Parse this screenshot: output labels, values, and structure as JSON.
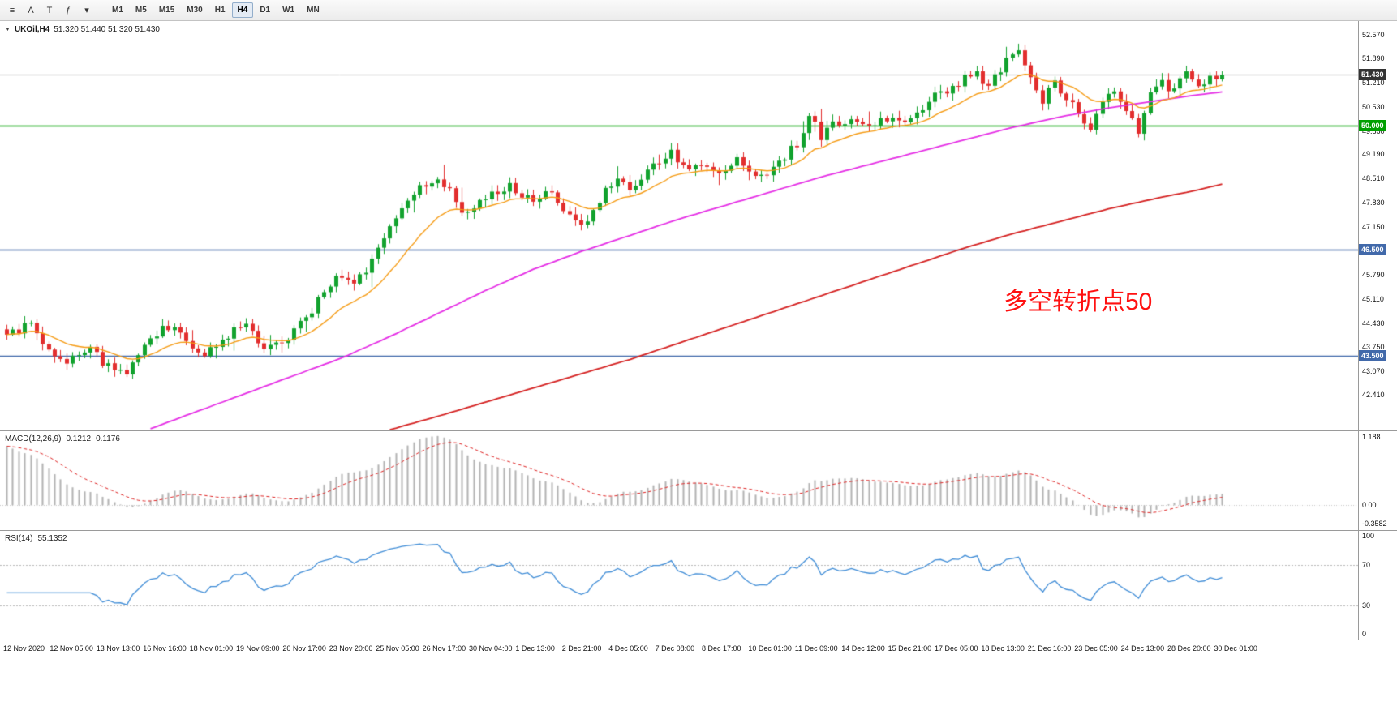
{
  "toolbar": {
    "tools": [
      {
        "id": "chart-cursor",
        "glyph": "≡"
      },
      {
        "id": "text-label",
        "glyph": "A"
      },
      {
        "id": "text-frame",
        "glyph": "T"
      },
      {
        "id": "objects",
        "glyph": "ƒ"
      },
      {
        "id": "objects-dropdown",
        "glyph": "▾"
      }
    ],
    "timeframes": [
      {
        "label": "M1",
        "active": false
      },
      {
        "label": "M5",
        "active": false
      },
      {
        "label": "M15",
        "active": false
      },
      {
        "label": "M30",
        "active": false
      },
      {
        "label": "H1",
        "active": false
      },
      {
        "label": "H4",
        "active": true
      },
      {
        "label": "D1",
        "active": false
      },
      {
        "label": "W1",
        "active": false
      },
      {
        "label": "MN",
        "active": false
      }
    ]
  },
  "chart": {
    "collapse_icon": "▼",
    "title_symbol": "UKOil,H4",
    "title_ohlc": "51.320 51.440 51.320 51.430",
    "annotation": {
      "text": "多空转折点50",
      "color": "#ff1111"
    },
    "price_axis": {
      "current_price": "51.430",
      "current_price_value": 51.43,
      "current_badge_color": "#333333",
      "ticks": [
        {
          "label": "52.570",
          "price": 52.57
        },
        {
          "label": "51.890",
          "price": 51.89
        },
        {
          "label": "51.210",
          "price": 51.21
        },
        {
          "label": "50.530",
          "price": 50.53
        },
        {
          "label": "49.850",
          "price": 49.85
        },
        {
          "label": "49.190",
          "price": 49.19
        },
        {
          "label": "48.510",
          "price": 48.51
        },
        {
          "label": "47.830",
          "price": 47.83
        },
        {
          "label": "47.150",
          "price": 47.15
        },
        {
          "label": "45.790",
          "price": 45.79
        },
        {
          "label": "45.110",
          "price": 45.11
        },
        {
          "label": "44.430",
          "price": 44.43
        },
        {
          "label": "43.750",
          "price": 43.75
        },
        {
          "label": "43.070",
          "price": 43.07
        },
        {
          "label": "42.410",
          "price": 42.41
        }
      ],
      "levels": [
        {
          "value": "50.000",
          "price": 50.0,
          "color": "#00a000"
        },
        {
          "value": "46.500",
          "price": 46.5,
          "color": "#4169aa"
        },
        {
          "value": "43.500",
          "price": 43.5,
          "color": "#4169aa"
        }
      ]
    }
  },
  "macd": {
    "label": "MACD(12,26,9)",
    "value1": "0.1212",
    "value2": "0.1176",
    "axis_max": "1.188",
    "axis_zero": "0.00",
    "axis_min": "-0.3582"
  },
  "rsi": {
    "label": "RSI(14)",
    "value": "55.1352",
    "axis": [
      {
        "label": "100",
        "value": 100
      },
      {
        "label": "70",
        "value": 70
      },
      {
        "label": "30",
        "value": 30
      },
      {
        "label": "0",
        "value": 0
      }
    ],
    "level_lines": [
      70,
      30
    ]
  },
  "time_axis": {
    "labels": [
      "12 Nov 2020",
      "12 Nov 05:00",
      "13 Nov 13:00",
      "16 Nov 16:00",
      "18 Nov 01:00",
      "19 Nov 09:00",
      "20 Nov 17:00",
      "23 Nov 20:00",
      "25 Nov 05:00",
      "26 Nov 17:00",
      "30 Nov 04:00",
      "1 Dec 13:00",
      "2 Dec 21:00",
      "4 Dec 05:00",
      "7 Dec 08:00",
      "8 Dec 17:00",
      "10 Dec 01:00",
      "11 Dec 09:00",
      "14 Dec 12:00",
      "15 Dec 21:00",
      "17 Dec 05:00",
      "18 Dec 13:00",
      "21 Dec 16:00",
      "23 Dec 05:00",
      "24 Dec 13:00",
      "28 Dec 20:00",
      "30 Dec 01:00"
    ]
  },
  "chart_data": {
    "type": "candlestick",
    "symbol": "UKOil",
    "timeframe": "H4",
    "bars": 204,
    "y_range": [
      41.4,
      52.95
    ],
    "bid": 51.43,
    "levels": [
      50.0,
      46.5,
      43.5
    ],
    "close_path": [
      [
        0,
        44.2
      ],
      [
        2,
        44.05
      ],
      [
        4,
        44.55
      ],
      [
        6,
        43.9
      ],
      [
        8,
        43.45
      ],
      [
        10,
        43.3
      ],
      [
        12,
        43.55
      ],
      [
        14,
        43.8
      ],
      [
        16,
        43.35
      ],
      [
        18,
        43.1
      ],
      [
        20,
        43.0
      ],
      [
        22,
        43.55
      ],
      [
        24,
        43.95
      ],
      [
        26,
        44.3
      ],
      [
        28,
        44.35
      ],
      [
        30,
        43.8
      ],
      [
        32,
        43.55
      ],
      [
        34,
        43.7
      ],
      [
        36,
        43.85
      ],
      [
        38,
        44.25
      ],
      [
        40,
        44.3
      ],
      [
        42,
        43.95
      ],
      [
        44,
        43.7
      ],
      [
        46,
        43.9
      ],
      [
        48,
        44.15
      ],
      [
        50,
        44.6
      ],
      [
        52,
        45.05
      ],
      [
        54,
        45.55
      ],
      [
        55,
        45.85
      ],
      [
        56,
        45.6
      ],
      [
        58,
        45.45
      ],
      [
        60,
        45.95
      ],
      [
        62,
        46.45
      ],
      [
        64,
        47.05
      ],
      [
        66,
        47.6
      ],
      [
        68,
        48.05
      ],
      [
        70,
        48.35
      ],
      [
        71,
        48.5
      ],
      [
        72,
        48.4
      ],
      [
        74,
        48.25
      ],
      [
        76,
        47.6
      ],
      [
        78,
        47.7
      ],
      [
        80,
        47.95
      ],
      [
        82,
        48.1
      ],
      [
        84,
        48.25
      ],
      [
        86,
        48.0
      ],
      [
        88,
        47.85
      ],
      [
        90,
        48.2
      ],
      [
        92,
        47.9
      ],
      [
        94,
        47.4
      ],
      [
        96,
        47.1
      ],
      [
        98,
        47.65
      ],
      [
        100,
        48.2
      ],
      [
        102,
        48.45
      ],
      [
        104,
        48.2
      ],
      [
        106,
        48.45
      ],
      [
        108,
        48.85
      ],
      [
        110,
        49.15
      ],
      [
        111,
        49.35
      ],
      [
        112,
        49.05
      ],
      [
        114,
        48.75
      ],
      [
        116,
        48.9
      ],
      [
        118,
        48.8
      ],
      [
        120,
        48.7
      ],
      [
        122,
        49.0
      ],
      [
        124,
        48.8
      ],
      [
        126,
        48.5
      ],
      [
        128,
        48.8
      ],
      [
        130,
        49.1
      ],
      [
        132,
        49.5
      ],
      [
        134,
        50.3
      ],
      [
        135,
        50.1
      ],
      [
        136,
        49.7
      ],
      [
        137,
        49.95
      ],
      [
        138,
        50.05
      ],
      [
        140,
        50.15
      ],
      [
        142,
        50.0
      ],
      [
        144,
        49.9
      ],
      [
        146,
        50.2
      ],
      [
        148,
        50.3
      ],
      [
        150,
        50.15
      ],
      [
        152,
        50.4
      ],
      [
        154,
        50.7
      ],
      [
        156,
        50.95
      ],
      [
        158,
        51.1
      ],
      [
        160,
        51.35
      ],
      [
        162,
        51.45
      ],
      [
        163,
        51.2
      ],
      [
        164,
        51.15
      ],
      [
        166,
        51.6
      ],
      [
        168,
        52.0
      ],
      [
        169,
        52.25
      ],
      [
        170,
        51.8
      ],
      [
        171,
        51.3
      ],
      [
        172,
        50.95
      ],
      [
        173,
        50.75
      ],
      [
        174,
        51.0
      ],
      [
        175,
        51.15
      ],
      [
        176,
        51.0
      ],
      [
        177,
        50.85
      ],
      [
        178,
        50.6
      ],
      [
        179,
        50.3
      ],
      [
        180,
        50.05
      ],
      [
        181,
        49.95
      ],
      [
        182,
        50.25
      ],
      [
        183,
        50.6
      ],
      [
        184,
        50.85
      ],
      [
        185,
        50.95
      ],
      [
        186,
        50.7
      ],
      [
        187,
        50.45
      ],
      [
        188,
        50.1
      ],
      [
        189,
        49.9
      ],
      [
        190,
        50.35
      ],
      [
        191,
        50.85
      ],
      [
        192,
        51.1
      ],
      [
        193,
        51.25
      ],
      [
        194,
        51.1
      ],
      [
        195,
        51.05
      ],
      [
        196,
        51.3
      ],
      [
        197,
        51.5
      ],
      [
        198,
        51.35
      ],
      [
        199,
        51.2
      ],
      [
        200,
        51.25
      ],
      [
        201,
        51.35
      ],
      [
        202,
        51.3
      ],
      [
        203,
        51.43
      ]
    ],
    "ma_mid_path": [
      [
        24,
        41.45
      ],
      [
        32,
        41.95
      ],
      [
        40,
        42.45
      ],
      [
        48,
        42.95
      ],
      [
        56,
        43.45
      ],
      [
        64,
        44.05
      ],
      [
        72,
        44.7
      ],
      [
        80,
        45.35
      ],
      [
        88,
        45.95
      ],
      [
        96,
        46.45
      ],
      [
        104,
        46.9
      ],
      [
        112,
        47.35
      ],
      [
        120,
        47.75
      ],
      [
        128,
        48.15
      ],
      [
        136,
        48.55
      ],
      [
        144,
        48.9
      ],
      [
        152,
        49.25
      ],
      [
        160,
        49.6
      ],
      [
        168,
        49.95
      ],
      [
        176,
        50.25
      ],
      [
        184,
        50.5
      ],
      [
        192,
        50.7
      ],
      [
        198,
        50.85
      ],
      [
        203,
        50.95
      ]
    ],
    "ma_slow_path": [
      [
        64,
        41.42
      ],
      [
        72,
        41.8
      ],
      [
        80,
        42.2
      ],
      [
        88,
        42.6
      ],
      [
        96,
        43.0
      ],
      [
        104,
        43.4
      ],
      [
        112,
        43.85
      ],
      [
        120,
        44.3
      ],
      [
        128,
        44.75
      ],
      [
        136,
        45.2
      ],
      [
        144,
        45.65
      ],
      [
        152,
        46.1
      ],
      [
        160,
        46.55
      ],
      [
        168,
        46.95
      ],
      [
        176,
        47.3
      ],
      [
        184,
        47.65
      ],
      [
        192,
        47.95
      ],
      [
        198,
        48.15
      ],
      [
        203,
        48.35
      ]
    ],
    "up_color": "#12a22e",
    "down_color": "#e22e2e",
    "ma_fast_color": "#f59b14",
    "ma_mid_color": "#e52ee5",
    "ma_slow_color": "#d42020",
    "bid_line_color": "#9a9a9a",
    "macd_hist_color": "#b3b3b3",
    "macd_signal_color": "#dd2222",
    "macd_range": [
      -0.3582,
      1.188
    ],
    "rsi_color": "#3f8cd6",
    "rsi_range": [
      0,
      100
    ],
    "indicators": {
      "macd": {
        "fast": 12,
        "slow": 26,
        "signal": 9
      },
      "rsi": {
        "period": 14
      }
    }
  }
}
